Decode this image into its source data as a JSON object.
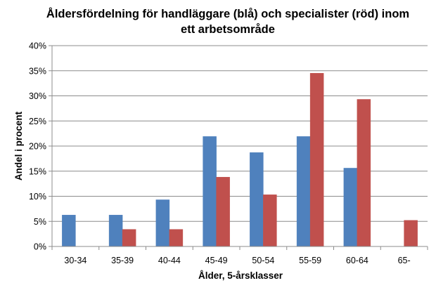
{
  "chart_data": {
    "type": "bar",
    "title_line1": "Åldersfördelning för handläggare (blå) och specialister (röd) inom",
    "title_line2": "ett arbetsområde",
    "xlabel": "Ålder, 5-årsklasser",
    "ylabel": "Andel i procent",
    "categories": [
      "30-34",
      "35-39",
      "40-44",
      "45-49",
      "50-54",
      "55-59",
      "60-64",
      "65-"
    ],
    "y_tick_labels": [
      "0%",
      "5%",
      "10%",
      "15%",
      "20%",
      "25%",
      "30%",
      "35%",
      "40%"
    ],
    "ylim": [
      0,
      40
    ],
    "grid": true,
    "legend": "none",
    "series": [
      {
        "color": "#4f81bd",
        "values": [
          6.25,
          6.25,
          9.3,
          21.9,
          18.7,
          21.9,
          15.6,
          0
        ]
      },
      {
        "color": "#c0504d",
        "values": [
          0,
          3.4,
          3.4,
          13.8,
          10.3,
          34.5,
          29.3,
          5.2
        ]
      }
    ]
  }
}
